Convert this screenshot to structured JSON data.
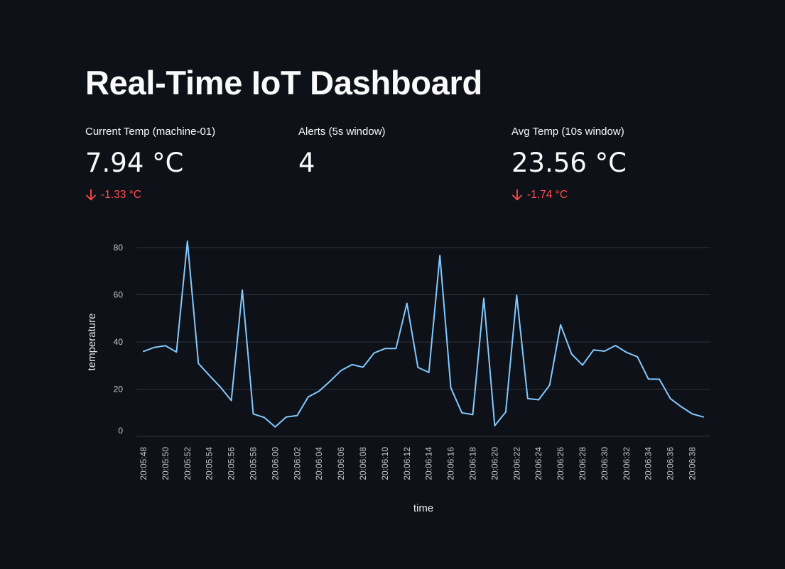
{
  "page": {
    "title": "Real-Time IoT Dashboard",
    "background": "#0e1117",
    "text_color": "#fafafa",
    "negative_delta_color": "#ff4b4b",
    "line_color": "#83c9ff"
  },
  "metrics": [
    {
      "label": "Current Temp (machine-01)",
      "value": "7.94 °C",
      "delta": "-1.33 °C",
      "delta_icon": "arrow-down-icon"
    },
    {
      "label": "Alerts (5s window)",
      "value": "4",
      "delta": ""
    },
    {
      "label": "Avg Temp (10s window)",
      "value": "23.56 °C",
      "delta": "-1.74 °C",
      "delta_icon": "arrow-down-icon"
    }
  ],
  "chart_data": {
    "type": "line",
    "title": "",
    "xlabel": "time",
    "ylabel": "temperature",
    "ylim": [
      0,
      80
    ],
    "yticks": [
      0,
      20,
      40,
      60,
      80
    ],
    "grid": true,
    "x_start_seconds": 28,
    "x": [
      "20:05:48",
      "20:05:49",
      "20:05:50",
      "20:05:51",
      "20:05:52",
      "20:05:53",
      "20:05:54",
      "20:05:55",
      "20:05:56",
      "20:05:57",
      "20:05:58",
      "20:05:59",
      "20:06:00",
      "20:06:01",
      "20:06:02",
      "20:06:03",
      "20:06:04",
      "20:06:05",
      "20:06:06",
      "20:06:07",
      "20:06:08",
      "20:06:09",
      "20:06:10",
      "20:06:11",
      "20:06:12",
      "20:06:13",
      "20:06:14",
      "20:06:15",
      "20:06:16",
      "20:06:17",
      "20:06:18",
      "20:06:19",
      "20:06:20",
      "20:06:21",
      "20:06:22",
      "20:06:23",
      "20:06:24",
      "20:06:25",
      "20:06:26",
      "20:06:27",
      "20:06:28",
      "20:06:29",
      "20:06:30",
      "20:06:31",
      "20:06:32",
      "20:06:33",
      "20:06:34",
      "20:06:35",
      "20:06:36",
      "20:06:37",
      "20:06:38",
      "20:06:39"
    ],
    "xticks": [
      "20:05:48",
      "20:05:50",
      "20:05:52",
      "20:05:54",
      "20:05:56",
      "20:05:58",
      "20:06:00",
      "20:06:02",
      "20:06:04",
      "20:06:06",
      "20:06:08",
      "20:06:10",
      "20:06:12",
      "20:06:14",
      "20:06:16",
      "20:06:18",
      "20:06:20",
      "20:06:22",
      "20:06:24",
      "20:06:26",
      "20:06:28",
      "20:06:30",
      "20:06:32",
      "20:06:34",
      "20:06:36",
      "20:06:38"
    ],
    "series": [
      {
        "color": "#83c9ff",
        "values": [
          36,
          37.7,
          38.4,
          35.7,
          82.7,
          30.9,
          25.8,
          20.9,
          15.2,
          62,
          9.5,
          8,
          4,
          8.2,
          8.8,
          16.7,
          19.2,
          23.4,
          27.9,
          30.4,
          29.3,
          35.3,
          37.2,
          37.2,
          56.4,
          29.2,
          27.1,
          76.7,
          20.6,
          10,
          9.2,
          58.5,
          4.5,
          10.3,
          59.8,
          16,
          15.5,
          21.7,
          47.3,
          34.9,
          30.2,
          36.6,
          36.1,
          38.5,
          35.6,
          33.7,
          24.3,
          24.2,
          16,
          12.5,
          9.5,
          8.2
        ]
      }
    ]
  }
}
